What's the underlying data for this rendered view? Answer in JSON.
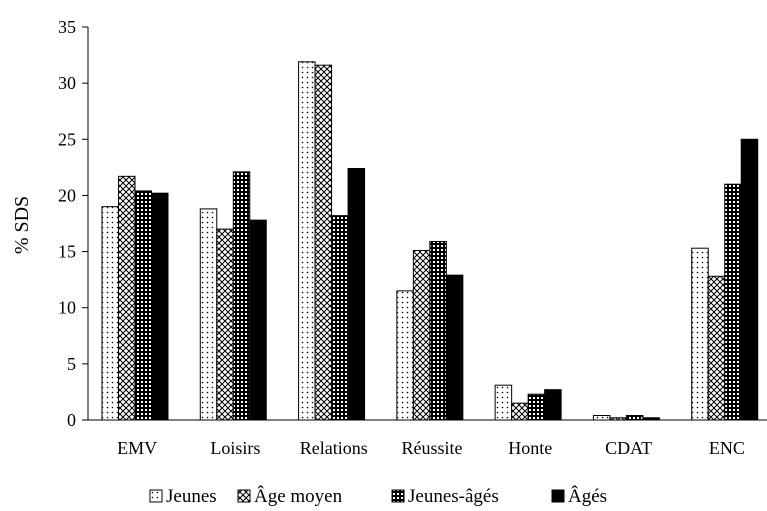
{
  "chart_data": {
    "type": "bar",
    "title": "",
    "xlabel": "",
    "ylabel": "% SDS",
    "ylim": [
      0,
      35
    ],
    "yticks": [
      0,
      5,
      10,
      15,
      20,
      25,
      30,
      35
    ],
    "grid": false,
    "legend_position": "bottom",
    "categories": [
      "EMV",
      "Loisirs",
      "Relations",
      "Réussite",
      "Honte",
      "CDAT",
      "ENC"
    ],
    "series": [
      {
        "name": "Jeunes",
        "pattern": "dots",
        "values": [
          19.0,
          18.8,
          31.9,
          11.5,
          3.1,
          0.4,
          15.3
        ]
      },
      {
        "name": "Âge moyen",
        "pattern": "crosshatch",
        "values": [
          21.7,
          17.0,
          31.6,
          15.1,
          1.5,
          0.2,
          12.8
        ]
      },
      {
        "name": "Jeunes-âgés",
        "pattern": "dense-grid",
        "values": [
          20.4,
          22.1,
          18.2,
          15.9,
          2.3,
          0.4,
          21.0
        ]
      },
      {
        "name": "Âgés",
        "pattern": "solid",
        "values": [
          20.2,
          17.8,
          22.4,
          12.9,
          2.7,
          0.2,
          25.0
        ]
      }
    ],
    "colors": {
      "ink": "#000000",
      "fill": "#ffffff"
    }
  }
}
